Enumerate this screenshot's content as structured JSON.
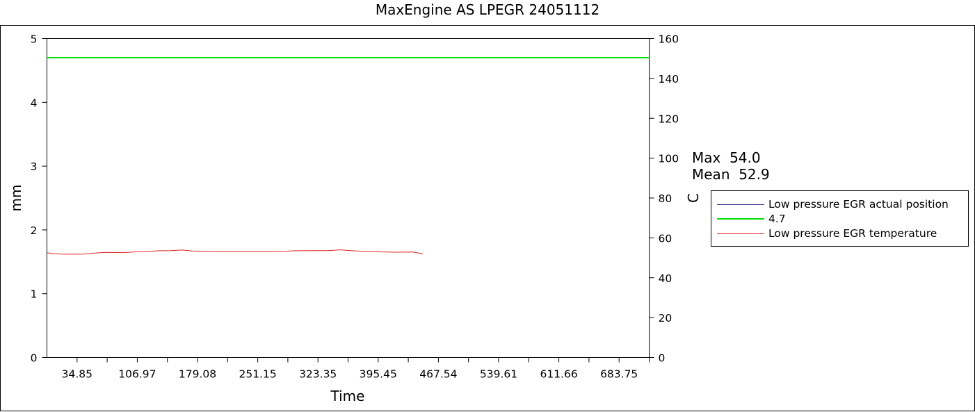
{
  "header": {
    "title": "MaxEngine AS  LPEGR 24051112"
  },
  "stats": {
    "max": "Max  54.0",
    "mean": "Mean  52.9"
  },
  "chart_data": {
    "type": "line",
    "title": "MaxEngine AS  LPEGR 24051112",
    "xlabel": "Time",
    "ylabel_left": "mm",
    "ylabel_right": "C",
    "xlim": [
      10,
      718
    ],
    "ylim_left": [
      0,
      5
    ],
    "ylim_right": [
      0,
      160
    ],
    "x_tick_labels": [
      "34.85",
      "106.97",
      "179.08",
      "251.15",
      "323.35",
      "395.45",
      "467.54",
      "539.61",
      "611.66",
      "683.75"
    ],
    "y_left_ticks": [
      0,
      1,
      2,
      3,
      4,
      5
    ],
    "y_right_ticks": [
      0,
      20,
      40,
      60,
      80,
      100,
      120,
      140,
      160
    ],
    "grid": false,
    "legend_position": "right",
    "series": [
      {
        "name": "Low pressure EGR actual position",
        "axis": "left",
        "color": "#3b3b8f",
        "x": [],
        "y": []
      },
      {
        "name": "4.7",
        "axis": "left",
        "color": "#00dd00",
        "x": [
          10,
          718
        ],
        "y": [
          4.7,
          4.7
        ]
      },
      {
        "name": "Low pressure EGR temperature",
        "axis": "right",
        "color": "#dd2222",
        "x": [
          10,
          20,
          30,
          45,
          55,
          70,
          80,
          100,
          115,
          130,
          140,
          155,
          170,
          180,
          195,
          210,
          230,
          260,
          290,
          300,
          320,
          340,
          355,
          370,
          385,
          400,
          420,
          440,
          452
        ],
        "y": [
          52.5,
          52.0,
          51.8,
          51.8,
          51.9,
          52.5,
          52.7,
          52.6,
          53.0,
          53.2,
          53.5,
          53.6,
          53.9,
          53.4,
          53.3,
          53.2,
          53.2,
          53.2,
          53.3,
          53.5,
          53.6,
          53.6,
          54.0,
          53.5,
          53.2,
          53.0,
          52.8,
          52.9,
          52.0
        ]
      }
    ]
  }
}
